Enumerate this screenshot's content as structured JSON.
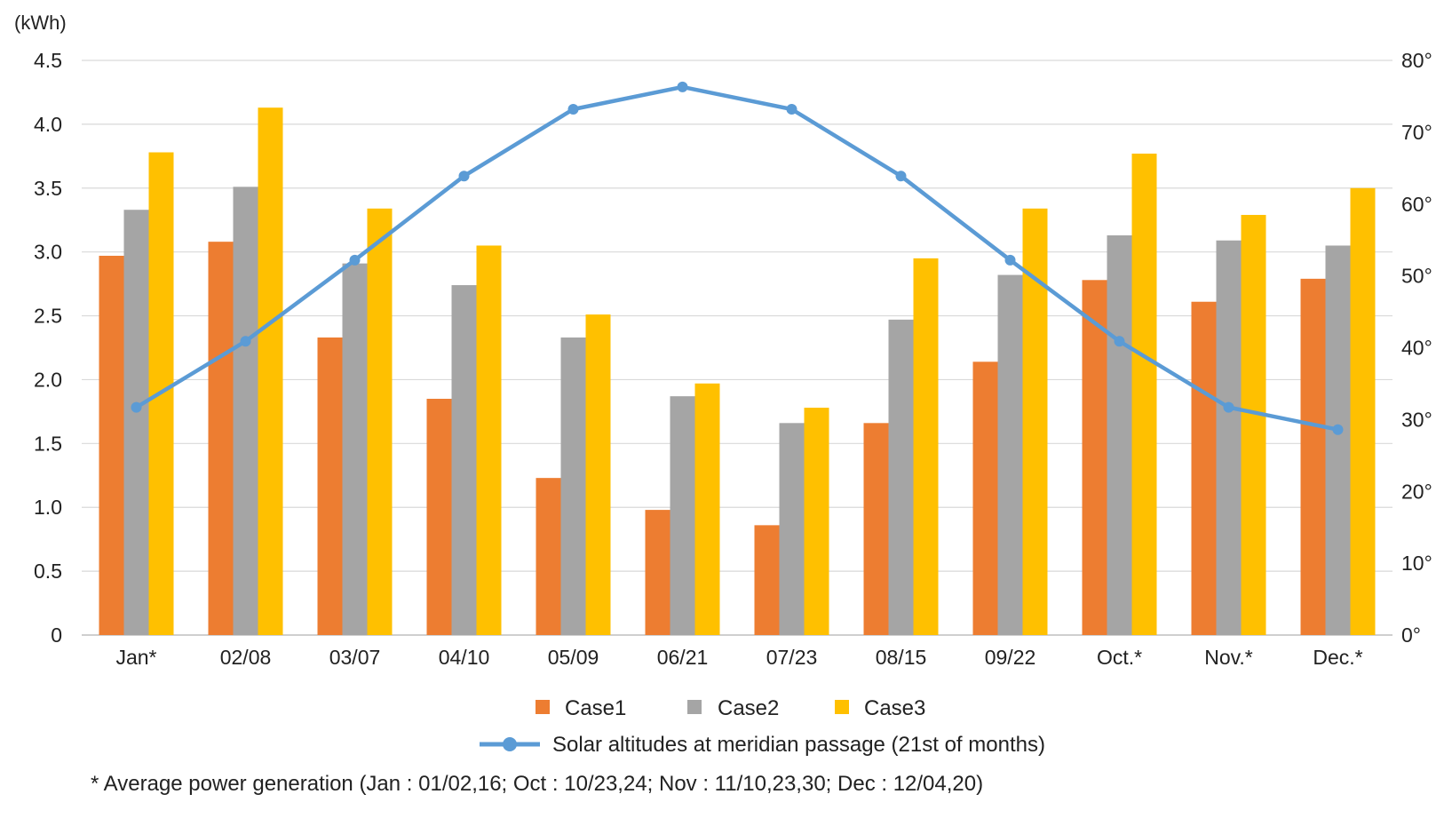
{
  "chart_data": {
    "type": "bar",
    "y_unit": "(kWh)",
    "categories": [
      "Jan*",
      "02/08",
      "03/07",
      "04/10",
      "05/09",
      "06/21",
      "07/23",
      "08/15",
      "09/22",
      "Oct.*",
      "Nov.*",
      "Dec.*"
    ],
    "series": [
      {
        "name": "Case1",
        "color": "#ED7D31",
        "values": [
          2.97,
          3.08,
          2.33,
          1.85,
          1.23,
          0.98,
          0.86,
          1.66,
          2.14,
          2.78,
          2.61,
          2.79
        ]
      },
      {
        "name": "Case2",
        "color": "#A5A5A5",
        "values": [
          3.33,
          3.51,
          2.91,
          2.74,
          2.33,
          1.87,
          1.66,
          2.47,
          2.82,
          3.13,
          3.09,
          3.05
        ]
      },
      {
        "name": "Case3",
        "color": "#FFC000",
        "values": [
          3.78,
          4.13,
          3.34,
          3.05,
          2.51,
          1.97,
          1.78,
          2.95,
          3.34,
          3.77,
          3.29,
          3.5
        ]
      }
    ],
    "line_series": {
      "name": "Solar altitudes at meridian passage (21st of months)",
      "type": "line",
      "axis": "right",
      "color": "#5B9BD5",
      "values": [
        31.7,
        40.9,
        52.2,
        63.9,
        73.2,
        76.3,
        73.2,
        63.9,
        52.2,
        40.9,
        31.7,
        28.6
      ]
    },
    "y_left": {
      "ylim": [
        0,
        4.5
      ],
      "ticks": [
        "0",
        "0.5",
        "1.0",
        "1.5",
        "2.0",
        "2.5",
        "3.0",
        "3.5",
        "4.0",
        "4.5"
      ]
    },
    "y_right": {
      "ylim": [
        0,
        80
      ],
      "ticks": [
        "0°",
        "10°",
        "20°",
        "30°",
        "40°",
        "50°",
        "60°",
        "70°",
        "80°"
      ]
    },
    "grid": true,
    "legend_position": "bottom",
    "footnote": "* Average power generation (Jan : 01/02,16; Oct : 10/23,24; Nov : 11/10,23,30; Dec : 12/04,20)"
  }
}
